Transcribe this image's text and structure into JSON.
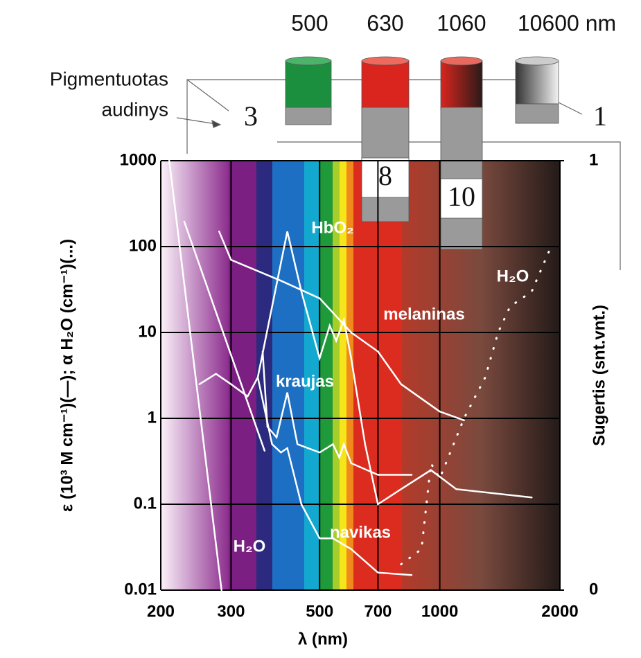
{
  "chart_data": {
    "type": "line",
    "x_label": "λ (nm)",
    "y_label": "ε (10³ M cm⁻¹)(—); α H₂O (cm⁻¹)(...)",
    "y2_label": "Sugertis (snt.vnt.)",
    "top_labels": [
      "500",
      "630",
      "1060",
      "10600 nm"
    ],
    "tissue_label": [
      "Pigmentuotas",
      "audinys"
    ],
    "depth_labels": [
      "3",
      "8",
      "10",
      "1"
    ],
    "annotations": [
      "HbO₂",
      "melaninas",
      "kraujas",
      "navikas",
      "H₂O",
      "H₂O"
    ],
    "log_x": true,
    "log_y": true,
    "grid": true,
    "xlim": [
      200,
      2000
    ],
    "xticks": [
      200,
      300,
      500,
      700,
      1000,
      2000
    ],
    "ylim": [
      0.01,
      1000
    ],
    "yticks": [
      0.01,
      0.1,
      1,
      10,
      100,
      1000
    ],
    "y2lim": [
      0,
      1
    ],
    "y2ticks": [
      0,
      1
    ],
    "series": [
      {
        "color": "#ffffff",
        "x": [
          250,
          275,
          300,
          330,
          350,
          380,
          415,
          450,
          500,
          530,
          550,
          575,
          600,
          650,
          700,
          800,
          950,
          1100,
          1700
        ],
        "values": [
          2.5,
          3.3,
          2.5,
          1.8,
          3,
          20,
          150,
          30,
          5,
          12,
          8,
          14,
          5,
          0.5,
          0.1,
          0.15,
          0.25,
          0.15,
          0.12
        ]
      },
      {
        "color": "#ffffff",
        "x": [
          280,
          300,
          400,
          500,
          600,
          700,
          800,
          1000,
          1150
        ],
        "values": [
          150,
          70,
          40,
          25,
          10,
          6,
          2.5,
          1.2,
          0.95
        ]
      },
      {
        "color": "#ffffff",
        "x": [
          360,
          370,
          390,
          415,
          440,
          500,
          540,
          560,
          575,
          600,
          700,
          850
        ],
        "values": [
          6,
          0.8,
          0.6,
          2,
          0.5,
          0.4,
          0.5,
          0.35,
          0.5,
          0.3,
          0.22,
          0.22
        ]
      },
      {
        "color": "#ffffff",
        "x": [
          350,
          380,
          400,
          415,
          450,
          500,
          540,
          600,
          700,
          850
        ],
        "values": [
          3,
          0.5,
          0.4,
          0.45,
          0.1,
          0.04,
          0.04,
          0.03,
          0.016,
          0.015
        ]
      },
      {
        "color": "#ffffff",
        "x": [
          210,
          284
        ],
        "values": [
          1000,
          0.01
        ]
      },
      {
        "color": "#ffffff",
        "x": [
          229,
          364
        ],
        "values": [
          195,
          0.42
        ]
      },
      {
        "color": "#ffffff",
        "dotted": true,
        "x": [
          800,
          900,
          950,
          1000,
          1150,
          1300,
          1400,
          1500,
          1700,
          1900
        ],
        "values": [
          0.02,
          0.03,
          0.3,
          0.2,
          1,
          3,
          10,
          20,
          30,
          100
        ]
      }
    ]
  }
}
